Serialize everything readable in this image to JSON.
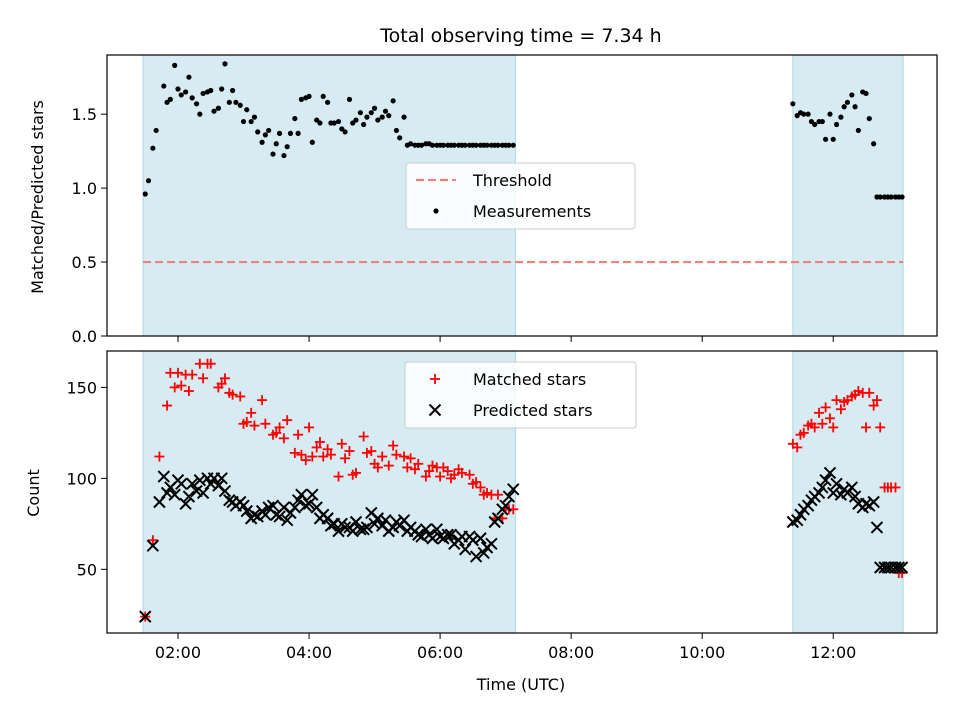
{
  "chart_data": [
    {
      "type": "scatter",
      "title": "Total observing time = 7.34 h",
      "xlabel": "",
      "ylabel": "Matched/Predicted stars",
      "xlim": [
        "00:55",
        "13:35"
      ],
      "ylim": [
        0.0,
        1.9
      ],
      "yticks": [
        "0.0",
        "0.5",
        "1.0",
        "1.5"
      ],
      "xticks": [
        "02:00",
        "04:00",
        "06:00",
        "08:00",
        "10:00",
        "12:00"
      ],
      "xtick_labels_visible": false,
      "legend_position": "center",
      "shaded_intervals": [
        [
          "01:28",
          "07:09"
        ],
        [
          "11:23",
          "13:04"
        ]
      ],
      "shade_color": "#add8e6",
      "threshold": {
        "name": "Threshold",
        "value": 0.5,
        "color": "#f08080",
        "style": "dashed"
      },
      "series": [
        {
          "name": "Measurements",
          "color": "#000000",
          "marker": "dot",
          "x": [
            "01:30",
            "01:33",
            "01:37",
            "01:40",
            "01:47",
            "01:50",
            "01:53",
            "01:57",
            "02:00",
            "02:03",
            "02:07",
            "02:10",
            "02:13",
            "02:17",
            "02:20",
            "02:23",
            "02:27",
            "02:30",
            "02:33",
            "02:37",
            "02:40",
            "02:43",
            "02:47",
            "02:50",
            "02:53",
            "02:57",
            "03:00",
            "03:03",
            "03:07",
            "03:10",
            "03:13",
            "03:17",
            "03:20",
            "03:23",
            "03:27",
            "03:30",
            "03:33",
            "03:37",
            "03:40",
            "03:43",
            "03:47",
            "03:50",
            "03:53",
            "03:57",
            "04:00",
            "04:03",
            "04:07",
            "04:10",
            "04:13",
            "04:17",
            "04:20",
            "04:23",
            "04:27",
            "04:30",
            "04:33",
            "04:37",
            "04:40",
            "04:43",
            "04:47",
            "04:50",
            "04:53",
            "04:57",
            "05:00",
            "05:03",
            "05:07",
            "05:10",
            "05:13",
            "05:17",
            "05:20",
            "05:23",
            "05:27",
            "05:30",
            "05:33",
            "05:37",
            "05:40",
            "05:43",
            "05:47",
            "05:50",
            "05:53",
            "05:57",
            "06:00",
            "06:03",
            "06:07",
            "06:10",
            "06:13",
            "06:17",
            "06:20",
            "06:23",
            "06:27",
            "06:30",
            "06:33",
            "06:37",
            "06:40",
            "06:43",
            "06:47",
            "06:50",
            "06:53",
            "06:57",
            "07:00",
            "07:03",
            "07:07",
            "11:23",
            "11:27",
            "11:30",
            "11:33",
            "11:37",
            "11:40",
            "11:43",
            "11:47",
            "11:50",
            "11:53",
            "11:57",
            "12:00",
            "12:03",
            "12:07",
            "12:10",
            "12:13",
            "12:17",
            "12:20",
            "12:23",
            "12:27",
            "12:30",
            "12:33",
            "12:37",
            "12:40",
            "12:43",
            "12:47",
            "12:50",
            "12:53",
            "12:57",
            "13:00",
            "13:03"
          ],
          "y": [
            0.96,
            1.05,
            1.27,
            1.39,
            1.69,
            1.58,
            1.6,
            1.83,
            1.67,
            1.63,
            1.65,
            1.75,
            1.61,
            1.57,
            1.5,
            1.64,
            1.65,
            1.66,
            1.52,
            1.54,
            1.67,
            1.84,
            1.58,
            1.66,
            1.58,
            1.56,
            1.45,
            1.53,
            1.45,
            1.48,
            1.38,
            1.31,
            1.36,
            1.39,
            1.23,
            1.3,
            1.37,
            1.22,
            1.28,
            1.37,
            1.47,
            1.37,
            1.6,
            1.61,
            1.62,
            1.31,
            1.46,
            1.44,
            1.62,
            1.58,
            1.44,
            1.44,
            1.45,
            1.4,
            1.38,
            1.6,
            1.44,
            1.46,
            1.51,
            1.43,
            1.48,
            1.51,
            1.54,
            1.46,
            1.48,
            1.52,
            1.49,
            1.59,
            1.39,
            1.34,
            1.48,
            1.29,
            1.3,
            1.29,
            1.29,
            1.29,
            1.3,
            1.3,
            1.29,
            1.29,
            1.29,
            1.29,
            1.29,
            1.29,
            1.29,
            1.29,
            1.29,
            1.29,
            1.29,
            1.29,
            1.29,
            1.29,
            1.29,
            1.29,
            1.29,
            1.29,
            1.29,
            1.29,
            1.29,
            1.29,
            1.29,
            1.57,
            1.49,
            1.51,
            1.5,
            1.5,
            1.45,
            1.43,
            1.45,
            1.45,
            1.33,
            1.5,
            1.33,
            1.43,
            1.48,
            1.55,
            1.58,
            1.63,
            1.55,
            1.39,
            1.65,
            1.64,
            1.47,
            1.3,
            0.94,
            0.94,
            0.94,
            0.94,
            0.94,
            0.94,
            0.94,
            0.94
          ]
        }
      ]
    },
    {
      "type": "scatter",
      "title": "",
      "xlabel": "Time (UTC)",
      "ylabel": "Count",
      "xlim": [
        "00:55",
        "13:35"
      ],
      "ylim": [
        15,
        170
      ],
      "yticks": [
        "50",
        "100",
        "150"
      ],
      "xticks": [
        "02:00",
        "04:00",
        "06:00",
        "08:00",
        "10:00",
        "12:00"
      ],
      "legend_position": "top-center",
      "shaded_intervals": [
        [
          "01:28",
          "07:09"
        ],
        [
          "11:23",
          "13:04"
        ]
      ],
      "shade_color": "#add8e6",
      "series": [
        {
          "name": "Matched stars",
          "color": "#ff0000",
          "marker": "plus",
          "x": [
            "01:30",
            "01:37",
            "01:43",
            "01:50",
            "01:53",
            "01:57",
            "02:00",
            "02:03",
            "02:07",
            "02:10",
            "02:13",
            "02:20",
            "02:23",
            "02:27",
            "02:30",
            "02:37",
            "02:40",
            "02:43",
            "02:47",
            "02:50",
            "02:57",
            "03:00",
            "03:03",
            "03:07",
            "03:10",
            "03:17",
            "03:20",
            "03:27",
            "03:30",
            "03:33",
            "03:37",
            "03:40",
            "03:47",
            "03:50",
            "03:53",
            "03:57",
            "04:00",
            "04:03",
            "04:07",
            "04:10",
            "04:13",
            "04:17",
            "04:20",
            "04:27",
            "04:30",
            "04:33",
            "04:37",
            "04:40",
            "04:43",
            "04:50",
            "04:53",
            "04:57",
            "05:00",
            "05:03",
            "05:07",
            "05:13",
            "05:17",
            "05:20",
            "05:27",
            "05:30",
            "05:33",
            "05:37",
            "05:40",
            "05:47",
            "05:50",
            "05:53",
            "05:57",
            "06:00",
            "06:03",
            "06:07",
            "06:10",
            "06:13",
            "06:17",
            "06:20",
            "06:27",
            "06:30",
            "06:33",
            "06:37",
            "06:40",
            "06:43",
            "06:47",
            "06:50",
            "06:53",
            "06:57",
            "07:00",
            "07:03",
            "07:07",
            "11:23",
            "11:27",
            "11:30",
            "11:33",
            "11:37",
            "11:40",
            "11:43",
            "11:47",
            "11:50",
            "11:53",
            "11:57",
            "12:00",
            "12:03",
            "12:07",
            "12:10",
            "12:13",
            "12:17",
            "12:20",
            "12:23",
            "12:27",
            "12:30",
            "12:33",
            "12:37",
            "12:40",
            "12:43",
            "12:47",
            "12:50",
            "12:53",
            "12:57",
            "13:00",
            "13:03"
          ],
          "y": [
            24,
            66,
            112,
            140,
            158,
            150,
            158,
            151,
            157,
            148,
            157,
            163,
            155,
            163,
            163,
            150,
            152,
            155,
            147,
            146,
            145,
            130,
            131,
            136,
            129,
            143,
            130,
            124,
            125,
            128,
            122,
            132,
            114,
            124,
            113,
            110,
            128,
            112,
            117,
            120,
            112,
            116,
            113,
            101,
            119,
            111,
            115,
            102,
            103,
            123,
            114,
            115,
            108,
            106,
            112,
            107,
            118,
            113,
            112,
            106,
            111,
            105,
            108,
            101,
            104,
            107,
            106,
            101,
            106,
            104,
            100,
            102,
            105,
            103,
            102,
            97,
            98,
            95,
            91,
            92,
            91,
            78,
            91,
            78,
            83,
            83,
            83,
            119,
            117,
            124,
            125,
            129,
            130,
            128,
            136,
            130,
            139,
            133,
            128,
            143,
            138,
            142,
            143,
            145,
            146,
            148,
            147,
            128,
            147,
            140,
            143,
            128,
            95,
            95,
            95,
            95,
            48,
            48
          ]
        },
        {
          "name": "Predicted stars",
          "color": "#000000",
          "marker": "x",
          "x": [
            "01:30",
            "01:37",
            "01:43",
            "01:47",
            "01:50",
            "01:53",
            "01:57",
            "02:00",
            "02:03",
            "02:07",
            "02:10",
            "02:13",
            "02:17",
            "02:20",
            "02:23",
            "02:27",
            "02:30",
            "02:33",
            "02:37",
            "02:40",
            "02:43",
            "02:47",
            "02:50",
            "02:53",
            "02:57",
            "03:00",
            "03:03",
            "03:07",
            "03:10",
            "03:13",
            "03:17",
            "03:20",
            "03:23",
            "03:27",
            "03:30",
            "03:33",
            "03:37",
            "03:40",
            "03:43",
            "03:47",
            "03:50",
            "03:53",
            "03:57",
            "04:00",
            "04:03",
            "04:07",
            "04:10",
            "04:13",
            "04:17",
            "04:20",
            "04:23",
            "04:27",
            "04:30",
            "04:33",
            "04:37",
            "04:40",
            "04:43",
            "04:47",
            "04:50",
            "04:53",
            "04:57",
            "05:00",
            "05:03",
            "05:07",
            "05:10",
            "05:13",
            "05:17",
            "05:20",
            "05:23",
            "05:27",
            "05:30",
            "05:33",
            "05:37",
            "05:40",
            "05:43",
            "05:47",
            "05:50",
            "05:53",
            "05:57",
            "06:00",
            "06:03",
            "06:07",
            "06:10",
            "06:13",
            "06:17",
            "06:20",
            "06:23",
            "06:27",
            "06:30",
            "06:33",
            "06:37",
            "06:40",
            "06:43",
            "06:47",
            "06:50",
            "06:53",
            "06:57",
            "07:00",
            "07:03",
            "07:07",
            "11:23",
            "11:27",
            "11:30",
            "11:33",
            "11:37",
            "11:40",
            "11:43",
            "11:47",
            "11:50",
            "11:53",
            "11:57",
            "12:00",
            "12:03",
            "12:07",
            "12:10",
            "12:13",
            "12:17",
            "12:20",
            "12:23",
            "12:27",
            "12:30",
            "12:33",
            "12:37",
            "12:40",
            "12:43",
            "12:47",
            "12:50",
            "12:53",
            "12:57",
            "13:00",
            "13:03"
          ],
          "y": [
            24,
            63,
            87,
            101,
            92,
            95,
            91,
            99,
            97,
            86,
            90,
            97,
            93,
            99,
            92,
            100,
            97,
            100,
            96,
            100,
            93,
            88,
            87,
            85,
            87,
            85,
            82,
            78,
            80,
            79,
            82,
            80,
            84,
            85,
            80,
            79,
            84,
            77,
            81,
            84,
            88,
            91,
            85,
            86,
            91,
            84,
            78,
            80,
            78,
            74,
            75,
            71,
            75,
            73,
            73,
            71,
            76,
            72,
            72,
            73,
            81,
            75,
            78,
            74,
            77,
            71,
            73,
            76,
            74,
            77,
            71,
            73,
            71,
            69,
            68,
            72,
            69,
            67,
            72,
            68,
            67,
            69,
            69,
            64,
            66,
            68,
            61,
            68,
            66,
            57,
            67,
            59,
            62,
            64,
            76,
            78,
            83,
            85,
            90,
            94,
            76,
            77,
            80,
            83,
            85,
            88,
            90,
            92,
            95,
            99,
            103,
            92,
            97,
            91,
            94,
            92,
            95,
            90,
            86,
            84,
            86,
            85,
            87,
            73,
            51,
            51,
            51,
            51,
            51,
            51,
            51
          ]
        }
      ]
    }
  ]
}
